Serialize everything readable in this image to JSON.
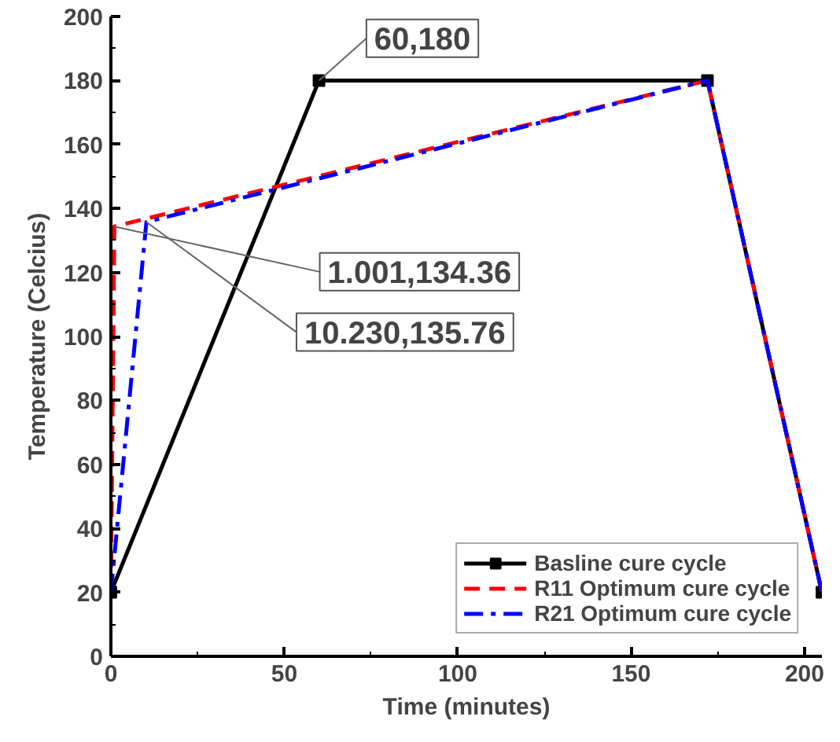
{
  "chart_data": {
    "type": "line",
    "xlabel": "Time (minutes)",
    "ylabel": "Temperature (Celcius)",
    "xlim": [
      0,
      205
    ],
    "ylim": [
      0,
      200
    ],
    "xticks": [
      0,
      50,
      100,
      150,
      200
    ],
    "yticks": [
      0,
      20,
      40,
      60,
      80,
      100,
      120,
      140,
      160,
      180,
      200
    ],
    "grid": false,
    "legend": "bottom right",
    "series": [
      {
        "name": "Basline cure cycle",
        "color": "#000000",
        "x": [
          0,
          60,
          172,
          205
        ],
        "values": [
          20,
          180,
          180,
          20
        ],
        "marker": "square",
        "line_style": "solid"
      },
      {
        "name": "R11 Optimum cure cycle",
        "color": "#ff0000",
        "x": [
          0,
          1.001,
          172,
          205
        ],
        "values": [
          20,
          134.36,
          180,
          20
        ],
        "marker": "none",
        "line_style": "dashed"
      },
      {
        "name": "R21 Optimum cure cycle",
        "color": "#0000ff",
        "x": [
          0,
          10.23,
          172,
          205
        ],
        "values": [
          20,
          135.76,
          180,
          20
        ],
        "marker": "none",
        "line_style": "dashdot"
      }
    ],
    "annotations": [
      {
        "text": "60,180",
        "x": 60,
        "y": 180
      },
      {
        "text": "1.001,134.36",
        "x": 1.001,
        "y": 134.36
      },
      {
        "text": "10.230,135.76",
        "x": 10.23,
        "y": 135.76
      }
    ]
  }
}
